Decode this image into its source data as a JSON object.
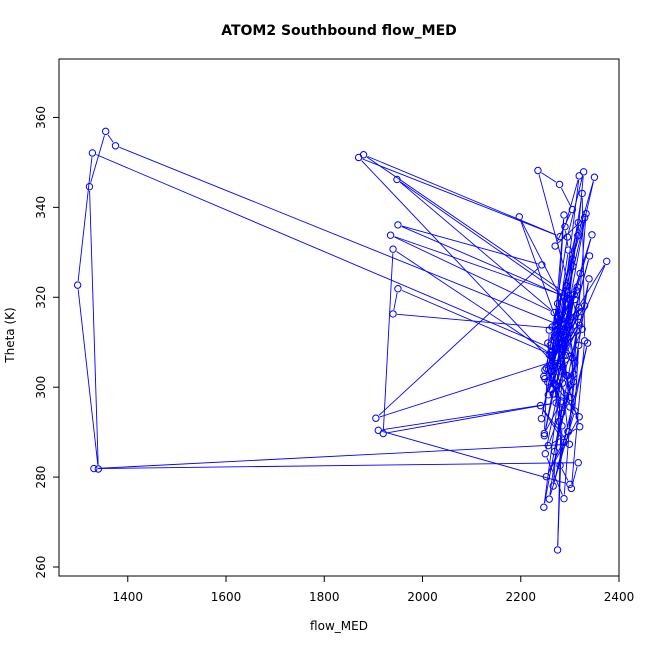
{
  "chart_data": {
    "type": "line",
    "title": "ATOM2 Southbound flow_MED",
    "xlabel": "flow_MED",
    "ylabel": "Theta (K)",
    "xlim": [
      1260,
      2400
    ],
    "ylim": [
      258,
      373
    ],
    "xticks": [
      1400,
      1600,
      1800,
      2000,
      2200,
      2400
    ],
    "yticks": [
      260,
      280,
      300,
      320,
      340,
      360
    ],
    "grid": false,
    "legend": "none",
    "series": [
      {
        "color": "#0000ff",
        "marker": "open-circle",
        "x": [
          2278,
          2268,
          2283,
          2252,
          2286,
          2262,
          2290,
          2275,
          2300,
          2258,
          2293,
          2270,
          2305,
          2249,
          2282,
          2313,
          2255,
          2298,
          2268,
          2325,
          2262,
          2300,
          2285,
          2318,
          2272,
          2340,
          2283,
          2309,
          2291,
          2375,
          2280,
          2321,
          2265,
          2315,
          2284,
          2345,
          2296,
          2197,
          2276,
          2330,
          2247,
          2317,
          2289,
          2256,
          2306,
          2273,
          2242,
          2294,
          2263,
          2318,
          2235,
          2279,
          2305,
          2270,
          2330,
          2264,
          2350,
          2283,
          2319,
          2290,
          2297,
          2273,
          2288,
          2264,
          2316,
          2328,
          2295,
          2260,
          2323,
          2249,
          2302,
          2274,
          2282,
          1870,
          2280,
          1880,
          2310,
          1935,
          2268,
          1948,
          2290,
          1950,
          2243,
          1905,
          2300,
          1328,
          1298,
          1340,
          1322,
          1355,
          1375,
          2302,
          1940,
          1950,
          2265,
          1940,
          1920,
          2272,
          1910,
          2300,
          2280,
          2288,
          2240,
          2299,
          1331,
          2317,
          2303,
          2330,
          2325,
          2294,
          2307,
          2283,
          2258,
          2310,
          2318,
          2297,
          2336,
          2266,
          2305,
          2255,
          2320,
          2339,
          2308,
          2269,
          2310,
          2296,
          2247,
          2314,
          2301,
          2256,
          2320,
          2286,
          2250,
          2288,
          2333,
          2248,
          2270,
          2319,
          2252,
          2296,
          2285,
          2266,
          2295,
          2258,
          2248,
          2283,
          2275,
          2284,
          2261,
          2293
        ],
        "y": [
          292.4,
          300.9,
          296.5,
          304.2,
          311.7,
          299.5,
          310.3,
          318.6,
          295.6,
          307.2,
          302.6,
          313.7,
          306.5,
          301.9,
          316.0,
          321.5,
          309.8,
          314.7,
          298.5,
          312.9,
          307.0,
          319.4,
          309.0,
          317.7,
          300.3,
          329.2,
          305.8,
          320.6,
          307.1,
          328.0,
          311.4,
          325.3,
          304.8,
          322.3,
          310.0,
          333.9,
          316.9,
          337.9,
          313.8,
          318.1,
          302.4,
          336.6,
          311.0,
          298.3,
          326.9,
          308.7,
          293.0,
          321.1,
          303.5,
          314.4,
          348.2,
          345.1,
          339.5,
          331.4,
          337.7,
          313.4,
          346.7,
          315.0,
          347.0,
          335.7,
          330.5,
          312.8,
          338.3,
          306.6,
          333.7,
          347.9,
          333.4,
          309.3,
          316.8,
          303.8,
          297.7,
          315.3,
          303.6,
          351.1,
          333.5,
          351.7,
          319.5,
          333.8,
          316.6,
          346.2,
          320.1,
          336.1,
          327.2,
          293.1,
          306.9,
          352.1,
          322.7,
          281.8,
          344.6,
          356.9,
          353.7,
          312.8,
          316.3,
          321.9,
          307.1,
          330.7,
          289.7,
          296.5,
          290.4,
          278.4,
          282.6,
          287.7,
          295.9,
          287.3,
          281.9,
          283.2,
          277.5,
          310.3,
          343.1,
          321.6,
          301.2,
          294.2,
          275.1,
          294.7,
          309.3,
          290.1,
          309.8,
          278.0,
          328.5,
          301.1,
          313.8,
          324.1,
          302.9,
          285.7,
          305.4,
          313.8,
          273.3,
          312.5,
          300.5,
          287.0,
          291.2,
          304.5,
          285.2,
          275.2,
          338.6,
          289.2,
          300.5,
          293.4,
          280.1,
          290.1,
          300.9,
          298.5,
          302.5,
          312.7,
          289.7,
          296.9,
          263.8,
          291.4,
          307.7,
          322.6
        ]
      }
    ]
  }
}
